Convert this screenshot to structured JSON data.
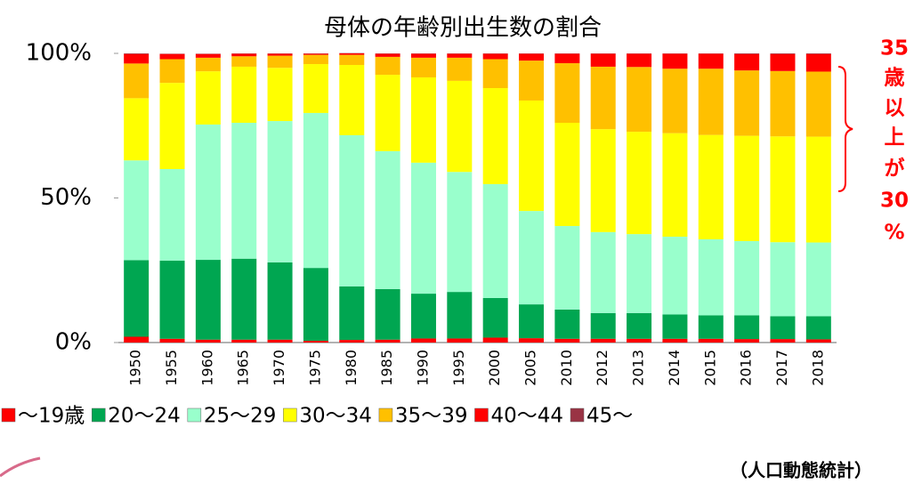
{
  "chart_data": {
    "type": "stacked_bar",
    "title": "母体の年齢別出生数の割合",
    "categories": [
      "1950",
      "1955",
      "1960",
      "1965",
      "1970",
      "1975",
      "1980",
      "1985",
      "1990",
      "1995",
      "2000",
      "2005",
      "2010",
      "2012",
      "2013",
      "2014",
      "2015",
      "2016",
      "2017",
      "2018"
    ],
    "series": [
      {
        "name": "～19歳",
        "color": "#ff0000",
        "values": [
          2,
          1.3,
          1,
          1,
          1,
          0.6,
          0.9,
          1,
          1.4,
          1.4,
          1.7,
          1.5,
          1.3,
          1.3,
          1.3,
          1.3,
          1.3,
          1.2,
          1.2,
          1.1
        ]
      },
      {
        "name": "20～24",
        "color": "#00a651",
        "values": [
          26.5,
          27,
          27.6,
          28,
          26.7,
          25.2,
          18.5,
          17.5,
          15.5,
          16.1,
          13.7,
          11.7,
          10.1,
          8.9,
          8.9,
          8.4,
          8.1,
          8.2,
          7.9,
          8
        ]
      },
      {
        "name": "25～29",
        "color": "#99ffcc",
        "values": [
          34.5,
          31.7,
          46.8,
          47,
          48.9,
          53.6,
          52.3,
          47.7,
          45.3,
          41.5,
          39.4,
          32.3,
          28.9,
          28,
          27.3,
          26.9,
          26.3,
          25.7,
          25.6,
          25.5
        ]
      },
      {
        "name": "30～34",
        "color": "#ffff00",
        "values": [
          21.5,
          29.8,
          18.4,
          19.4,
          18.4,
          16.9,
          24.3,
          26.4,
          29.5,
          31.5,
          33.2,
          38.2,
          35.7,
          35.6,
          35.4,
          35.8,
          36.1,
          36.4,
          36.6,
          36.6
        ]
      },
      {
        "name": "35～39",
        "color": "#ffc000",
        "values": [
          12,
          8.2,
          4.7,
          3.6,
          4.2,
          3.2,
          3.5,
          6.2,
          6.8,
          8,
          10,
          13.8,
          20.6,
          21.6,
          22.4,
          22.3,
          22.9,
          22.6,
          22.6,
          22.5
        ]
      },
      {
        "name": "40～44",
        "color": "#ff0000",
        "values": [
          3.3,
          1.8,
          1.3,
          0.9,
          0.7,
          0.4,
          0.5,
          1.1,
          1.4,
          1.4,
          1.9,
          2.4,
          3.3,
          4.5,
          4.6,
          5.2,
          5.2,
          5.7,
          5.9,
          6.1
        ]
      },
      {
        "name": "45～",
        "color": "#993344",
        "values": [
          0.2,
          0.1,
          0.1,
          0.1,
          0.1,
          0.1,
          0.1,
          0.1,
          0.1,
          0.1,
          0.1,
          0.1,
          0.1,
          0.1,
          0.1,
          0.1,
          0.1,
          0.2,
          0.2,
          0.2
        ]
      }
    ],
    "ylim": [
      0,
      100
    ],
    "yticks": [
      {
        "value": 0,
        "label": "0%"
      },
      {
        "value": 50,
        "label": "50%"
      },
      {
        "value": 100,
        "label": "100%"
      }
    ],
    "annotation": [
      "35",
      "歳",
      "以",
      "上",
      "が",
      "30",
      "%"
    ],
    "source": "（人口動態統計）"
  }
}
